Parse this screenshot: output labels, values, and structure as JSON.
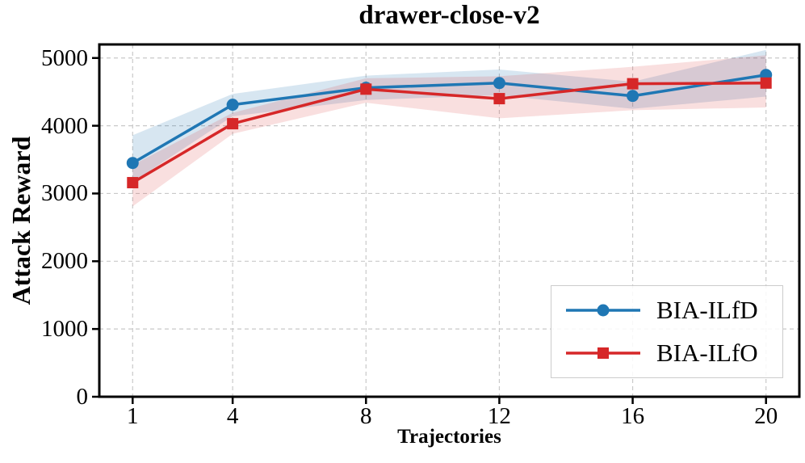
{
  "chart_data": {
    "type": "line",
    "title": "drawer-close-v2",
    "xlabel": "Trajectories",
    "ylabel": "Attack Reward",
    "x": [
      1,
      4,
      8,
      12,
      16,
      20
    ],
    "xtick_labels": [
      "1",
      "4",
      "8",
      "12",
      "16",
      "20"
    ],
    "ytick_values": [
      0,
      1000,
      2000,
      3000,
      4000,
      5000
    ],
    "ytick_labels": [
      "0",
      "1000",
      "2000",
      "3000",
      "4000",
      "5000"
    ],
    "xlim": [
      0,
      21
    ],
    "ylim": [
      0,
      5200
    ],
    "grid": true,
    "grid_style": "dashed",
    "legend_position": "lower right",
    "series": [
      {
        "name": "BIA-ILfD",
        "color": "#1f77b4",
        "band_color": "rgba(31,119,180,0.18)",
        "marker": "circle",
        "values": [
          3450,
          4310,
          4560,
          4630,
          4440,
          4750
        ],
        "band_low": [
          3170,
          4140,
          4380,
          4450,
          4250,
          4430
        ],
        "band_high": [
          3860,
          4470,
          4740,
          4830,
          4650,
          5120
        ]
      },
      {
        "name": "BIA-ILfO",
        "color": "#d62728",
        "band_color": "rgba(214,39,40,0.15)",
        "marker": "square",
        "values": [
          3160,
          4030,
          4540,
          4400,
          4620,
          4630
        ],
        "band_low": [
          2810,
          3880,
          4340,
          4110,
          4230,
          4270
        ],
        "band_high": [
          3420,
          4190,
          4700,
          4730,
          4870,
          5040
        ]
      }
    ]
  }
}
